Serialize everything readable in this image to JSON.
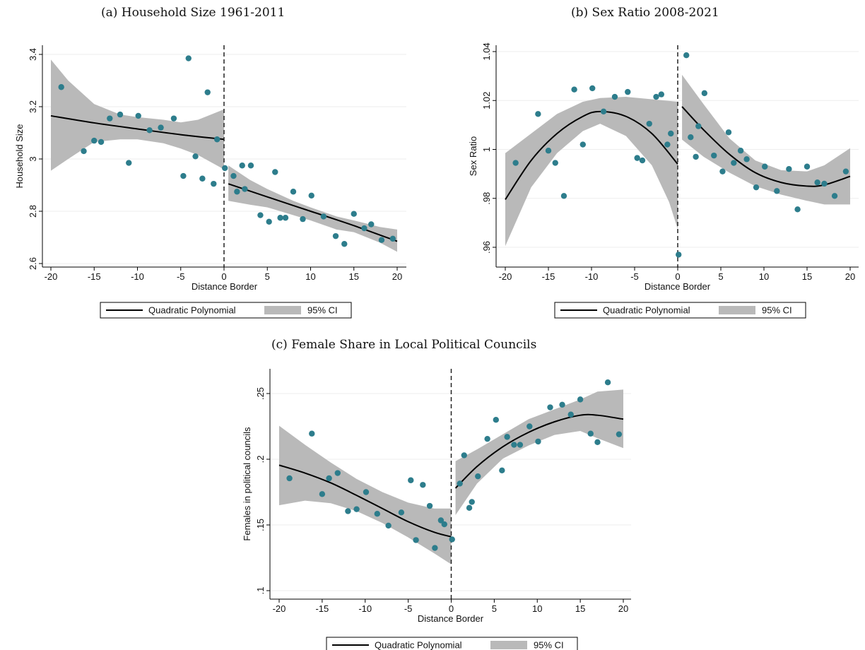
{
  "titles": {
    "a": "(a) Household Size 1961-2011",
    "b": "(b) Sex Ratio 2008-2021",
    "c": "(c) Female Share in Local Political Councils"
  },
  "colors": {
    "points": "#2d7d8c",
    "ci": "#b9b9b9",
    "fit": "#000000",
    "cutoff": "#222222"
  },
  "legend": {
    "fit_label": "Quadratic Polynomial",
    "ci_label": "95% CI"
  },
  "chart_data": [
    {
      "type": "scatter",
      "title": "(a) Household Size 1961-2011",
      "xlabel": "Distance Border",
      "ylabel": "Household Size",
      "xlim": [
        -20,
        20
      ],
      "ylim": [
        2.6,
        3.4
      ],
      "xticks": [
        -20,
        -15,
        -10,
        -5,
        0,
        5,
        10,
        15,
        20
      ],
      "xtick_labels": [
        "-20",
        "-15",
        "-10",
        "-5",
        "0",
        "5",
        "10",
        "15",
        "20"
      ],
      "yticks": [
        2.6,
        2.8,
        3,
        3.2,
        3.4
      ],
      "ytick_labels": [
        "2.6",
        "2.8",
        "3",
        "3.2",
        "3.4"
      ],
      "cutoff": 0,
      "points": [
        [
          -18.8,
          3.275
        ],
        [
          -16.2,
          3.03
        ],
        [
          -15.0,
          3.07
        ],
        [
          -14.2,
          3.065
        ],
        [
          -13.2,
          3.155
        ],
        [
          -12.0,
          3.17
        ],
        [
          -11.0,
          2.985
        ],
        [
          -9.9,
          3.165
        ],
        [
          -8.6,
          3.11
        ],
        [
          -7.3,
          3.12
        ],
        [
          -5.8,
          3.155
        ],
        [
          -4.7,
          2.935
        ],
        [
          -4.1,
          3.385
        ],
        [
          -3.3,
          3.01
        ],
        [
          -2.5,
          2.925
        ],
        [
          -1.9,
          3.255
        ],
        [
          -1.2,
          2.905
        ],
        [
          -0.8,
          3.075
        ],
        [
          0.1,
          2.965
        ],
        [
          1.1,
          2.935
        ],
        [
          1.5,
          2.875
        ],
        [
          2.1,
          2.975
        ],
        [
          2.4,
          2.885
        ],
        [
          3.1,
          2.975
        ],
        [
          4.2,
          2.785
        ],
        [
          5.2,
          2.76
        ],
        [
          5.9,
          2.95
        ],
        [
          6.5,
          2.775
        ],
        [
          7.1,
          2.775
        ],
        [
          8.0,
          2.875
        ],
        [
          9.1,
          2.77
        ],
        [
          10.1,
          2.86
        ],
        [
          11.5,
          2.78
        ],
        [
          12.9,
          2.705
        ],
        [
          13.9,
          2.675
        ],
        [
          15.0,
          2.79
        ],
        [
          16.2,
          2.735
        ],
        [
          17.0,
          2.75
        ],
        [
          18.2,
          2.69
        ],
        [
          19.5,
          2.695
        ]
      ],
      "fit_left": [
        [
          -20,
          3.165
        ],
        [
          -15,
          3.138
        ],
        [
          -10,
          3.115
        ],
        [
          -5,
          3.093
        ],
        [
          0,
          3.075
        ]
      ],
      "fit_right": [
        [
          0.5,
          2.905
        ],
        [
          5,
          2.855
        ],
        [
          10,
          2.8
        ],
        [
          15,
          2.745
        ],
        [
          20,
          2.685
        ]
      ],
      "ci_left_upper": [
        [
          -20,
          3.38
        ],
        [
          -18,
          3.3
        ],
        [
          -15,
          3.21
        ],
        [
          -12,
          3.17
        ],
        [
          -10,
          3.16
        ],
        [
          -7,
          3.15
        ],
        [
          -5,
          3.14
        ],
        [
          -3,
          3.15
        ],
        [
          0,
          3.19
        ]
      ],
      "ci_left_lower": [
        [
          -20,
          2.955
        ],
        [
          -18,
          3.0
        ],
        [
          -15,
          3.065
        ],
        [
          -12,
          3.075
        ],
        [
          -10,
          3.075
        ],
        [
          -7,
          3.06
        ],
        [
          -5,
          3.04
        ],
        [
          -3,
          3.015
        ],
        [
          0,
          2.96
        ]
      ],
      "ci_right_upper": [
        [
          0.5,
          2.975
        ],
        [
          3,
          2.92
        ],
        [
          5,
          2.885
        ],
        [
          8,
          2.84
        ],
        [
          10,
          2.815
        ],
        [
          13,
          2.78
        ],
        [
          15,
          2.765
        ],
        [
          18,
          2.74
        ],
        [
          20,
          2.73
        ]
      ],
      "ci_right_lower": [
        [
          0.5,
          2.84
        ],
        [
          3,
          2.825
        ],
        [
          5,
          2.815
        ],
        [
          8,
          2.785
        ],
        [
          10,
          2.765
        ],
        [
          13,
          2.73
        ],
        [
          15,
          2.72
        ],
        [
          18,
          2.68
        ],
        [
          20,
          2.645
        ]
      ]
    },
    {
      "type": "scatter",
      "title": "(b) Sex Ratio 2008-2021",
      "xlabel": "Distance Border",
      "ylabel": "Sex Ratio",
      "xlim": [
        -20,
        20
      ],
      "ylim": [
        0.96,
        1.04
      ],
      "xticks": [
        -20,
        -15,
        -10,
        -5,
        0,
        5,
        10,
        15,
        20
      ],
      "xtick_labels": [
        "-20",
        "-15",
        "-10",
        "-5",
        "0",
        "5",
        "10",
        "15",
        "20"
      ],
      "yticks": [
        0.96,
        0.98,
        1,
        1.02,
        1.04
      ],
      "ytick_labels": [
        ".96",
        ".98",
        "1",
        "1.02",
        "1.04"
      ],
      "cutoff": 0,
      "points": [
        [
          -18.8,
          0.9945
        ],
        [
          -16.2,
          1.0145
        ],
        [
          -15.0,
          0.9995
        ],
        [
          -14.2,
          0.9945
        ],
        [
          -13.2,
          0.981
        ],
        [
          -12.0,
          1.0245
        ],
        [
          -11.0,
          1.002
        ],
        [
          -9.9,
          1.025
        ],
        [
          -8.6,
          1.0155
        ],
        [
          -7.3,
          1.0215
        ],
        [
          -5.8,
          1.0235
        ],
        [
          -4.7,
          0.9965
        ],
        [
          -4.1,
          0.9955
        ],
        [
          -3.3,
          1.0105
        ],
        [
          -2.5,
          1.0215
        ],
        [
          -1.9,
          1.0225
        ],
        [
          -1.2,
          1.002
        ],
        [
          -0.8,
          1.0065
        ],
        [
          0.1,
          0.957
        ],
        [
          1.0,
          1.0385
        ],
        [
          1.5,
          1.005
        ],
        [
          2.1,
          0.997
        ],
        [
          2.4,
          1.0095
        ],
        [
          3.1,
          1.023
        ],
        [
          4.2,
          0.9975
        ],
        [
          5.2,
          0.991
        ],
        [
          5.9,
          1.007
        ],
        [
          6.5,
          0.9945
        ],
        [
          7.3,
          0.9995
        ],
        [
          8.0,
          0.996
        ],
        [
          9.1,
          0.9845
        ],
        [
          10.1,
          0.993
        ],
        [
          11.5,
          0.983
        ],
        [
          12.9,
          0.992
        ],
        [
          13.9,
          0.9755
        ],
        [
          15.0,
          0.993
        ],
        [
          16.2,
          0.9865
        ],
        [
          17.0,
          0.986
        ],
        [
          18.2,
          0.981
        ],
        [
          19.5,
          0.991
        ]
      ],
      "fit_left": [
        [
          -20,
          0.9795
        ],
        [
          -17,
          0.9955
        ],
        [
          -14,
          1.0065
        ],
        [
          -11,
          1.0135
        ],
        [
          -9,
          1.0155
        ],
        [
          -6,
          1.0135
        ],
        [
          -3,
          1.0065
        ],
        [
          0,
          0.994
        ]
      ],
      "fit_right": [
        [
          0.5,
          1.0175
        ],
        [
          3,
          1.008
        ],
        [
          6,
          0.998
        ],
        [
          9,
          0.9905
        ],
        [
          12,
          0.9865
        ],
        [
          15,
          0.985
        ],
        [
          17,
          0.9855
        ],
        [
          20,
          0.989
        ]
      ],
      "ci_left_upper": [
        [
          -20,
          0.9985
        ],
        [
          -17,
          1.0065
        ],
        [
          -14,
          1.0145
        ],
        [
          -11,
          1.0195
        ],
        [
          -9,
          1.021
        ],
        [
          -6,
          1.0215
        ],
        [
          -3,
          1.0205
        ],
        [
          0,
          1.0195
        ]
      ],
      "ci_left_lower": [
        [
          -20,
          0.9605
        ],
        [
          -17,
          0.9845
        ],
        [
          -14,
          0.9985
        ],
        [
          -11,
          1.0075
        ],
        [
          -9,
          1.0105
        ],
        [
          -6,
          1.0055
        ],
        [
          -3,
          0.9935
        ],
        [
          -1,
          0.9785
        ],
        [
          0,
          0.9675
        ]
      ],
      "ci_right_upper": [
        [
          0.5,
          1.0305
        ],
        [
          3,
          1.0185
        ],
        [
          6,
          1.0045
        ],
        [
          9,
          0.9955
        ],
        [
          12,
          0.9915
        ],
        [
          15,
          0.991
        ],
        [
          17,
          0.9935
        ],
        [
          20,
          1.0005
        ]
      ],
      "ci_right_lower": [
        [
          0.5,
          1.004
        ],
        [
          3,
          0.997
        ],
        [
          6,
          0.9905
        ],
        [
          9,
          0.985
        ],
        [
          12,
          0.9815
        ],
        [
          15,
          0.979
        ],
        [
          17,
          0.9775
        ],
        [
          20,
          0.9775
        ]
      ]
    },
    {
      "type": "scatter",
      "title": "(c) Female Share in Local Political Councils",
      "xlabel": "Distance Border",
      "ylabel": "Females in political councils",
      "xlim": [
        -20,
        20
      ],
      "ylim": [
        0.1,
        0.25
      ],
      "xticks": [
        -20,
        -15,
        -10,
        -5,
        0,
        5,
        10,
        15,
        20
      ],
      "xtick_labels": [
        "-20",
        "-15",
        "-10",
        "-5",
        "0",
        "5",
        "10",
        "15",
        "20"
      ],
      "yticks": [
        0.1,
        0.15,
        0.2,
        0.25
      ],
      "ytick_labels": [
        ".1",
        ".15",
        ".2",
        ".25"
      ],
      "cutoff": 0,
      "points": [
        [
          -18.8,
          0.1855
        ],
        [
          -16.2,
          0.2195
        ],
        [
          -15.0,
          0.1735
        ],
        [
          -14.2,
          0.1855
        ],
        [
          -13.2,
          0.1895
        ],
        [
          -12.0,
          0.1605
        ],
        [
          -11.0,
          0.162
        ],
        [
          -9.9,
          0.175
        ],
        [
          -8.6,
          0.1585
        ],
        [
          -7.3,
          0.1495
        ],
        [
          -5.8,
          0.1595
        ],
        [
          -4.7,
          0.184
        ],
        [
          -4.1,
          0.1385
        ],
        [
          -3.3,
          0.1805
        ],
        [
          -2.5,
          0.1645
        ],
        [
          -1.9,
          0.1325
        ],
        [
          -1.2,
          0.1535
        ],
        [
          -0.8,
          0.1505
        ],
        [
          0.1,
          0.139
        ],
        [
          1.0,
          0.1815
        ],
        [
          1.5,
          0.203
        ],
        [
          2.1,
          0.163
        ],
        [
          2.4,
          0.1675
        ],
        [
          3.1,
          0.187
        ],
        [
          4.2,
          0.2155
        ],
        [
          5.2,
          0.23
        ],
        [
          5.9,
          0.1915
        ],
        [
          6.5,
          0.217
        ],
        [
          7.3,
          0.211
        ],
        [
          8.0,
          0.211
        ],
        [
          9.1,
          0.225
        ],
        [
          10.1,
          0.2135
        ],
        [
          11.5,
          0.2395
        ],
        [
          12.9,
          0.2415
        ],
        [
          13.9,
          0.234
        ],
        [
          15.0,
          0.2455
        ],
        [
          16.2,
          0.2195
        ],
        [
          17.0,
          0.213
        ],
        [
          18.2,
          0.2585
        ],
        [
          19.5,
          0.219
        ]
      ],
      "fit_left": [
        [
          -20,
          0.1955
        ],
        [
          -17,
          0.1895
        ],
        [
          -14,
          0.182
        ],
        [
          -11,
          0.1725
        ],
        [
          -8,
          0.1625
        ],
        [
          -5,
          0.1525
        ],
        [
          -2,
          0.1445
        ],
        [
          0,
          0.141
        ]
      ],
      "fit_right": [
        [
          0.5,
          0.178
        ],
        [
          3,
          0.1945
        ],
        [
          6,
          0.2095
        ],
        [
          9,
          0.2205
        ],
        [
          12,
          0.2285
        ],
        [
          15,
          0.2335
        ],
        [
          17,
          0.2335
        ],
        [
          20,
          0.2305
        ]
      ],
      "ci_left_upper": [
        [
          -20,
          0.2255
        ],
        [
          -17,
          0.211
        ],
        [
          -14,
          0.1975
        ],
        [
          -11,
          0.185
        ],
        [
          -8,
          0.175
        ],
        [
          -5,
          0.167
        ],
        [
          -2,
          0.1625
        ],
        [
          0,
          0.1625
        ]
      ],
      "ci_left_lower": [
        [
          -20,
          0.165
        ],
        [
          -17,
          0.1685
        ],
        [
          -14,
          0.1665
        ],
        [
          -11,
          0.1605
        ],
        [
          -8,
          0.1515
        ],
        [
          -5,
          0.1405
        ],
        [
          -2,
          0.1285
        ],
        [
          0,
          0.12
        ]
      ],
      "ci_right_upper": [
        [
          0.5,
          0.1985
        ],
        [
          3,
          0.2075
        ],
        [
          6,
          0.219
        ],
        [
          9,
          0.2305
        ],
        [
          12,
          0.238
        ],
        [
          15,
          0.2455
        ],
        [
          17,
          0.2515
        ],
        [
          20,
          0.253
        ]
      ],
      "ci_right_lower": [
        [
          0.5,
          0.1575
        ],
        [
          3,
          0.1815
        ],
        [
          6,
          0.2005
        ],
        [
          9,
          0.2105
        ],
        [
          12,
          0.2185
        ],
        [
          15,
          0.2215
        ],
        [
          17,
          0.216
        ],
        [
          20,
          0.2085
        ]
      ]
    }
  ]
}
